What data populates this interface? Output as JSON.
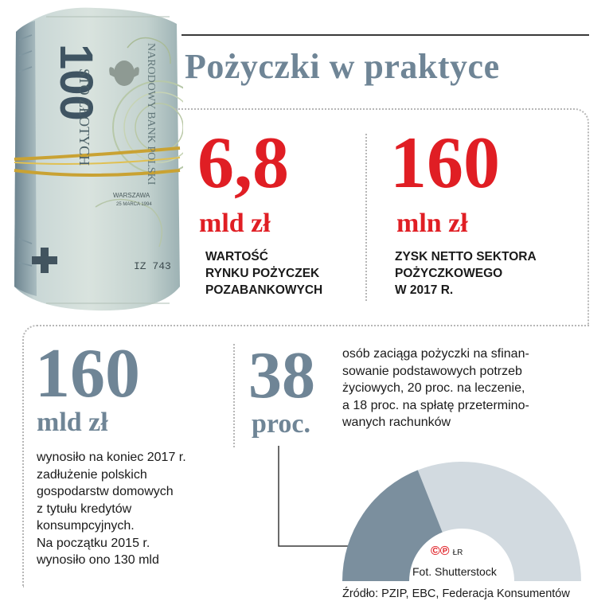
{
  "title": "Pożyczki w praktyce",
  "stats_top": [
    {
      "value": "6,8",
      "unit": "mld zł",
      "lines": [
        "WARTOŚĆ",
        "RYNKU POŻYCZEK",
        "POZABANKOWYCH"
      ]
    },
    {
      "value": "160",
      "unit": "mln zł",
      "lines": [
        "ZYSK NETTO SEKTORA",
        "POŻYCZKOWEGO",
        "W 2017 R."
      ]
    }
  ],
  "stat_left": {
    "value": "160",
    "unit": "mld zł",
    "lines": [
      "wynosiło na koniec 2017 r.",
      "zadłużenie polskich",
      "gospodarstw domowych",
      "z tytułu kredytów",
      "konsumpcyjnych.",
      "Na początku 2015 r.",
      "wynosiło ono 130 mld"
    ]
  },
  "stat_right": {
    "value": "38",
    "unit": "proc.",
    "lines": [
      "osób zaciąga pożyczki na sfinan-",
      "sowanie podstawowych potrzeb",
      "życiowych, 20 proc. na leczenie,",
      "a 18 proc. na spłatę przetermino-",
      "wanych rachunków"
    ],
    "gauge_fraction": 0.38
  },
  "banknote": {
    "denomination": "100",
    "words": "STO ZŁOTYCH",
    "bank": "NARODOWY BANK POLSKI",
    "city": "WARSZAWA",
    "date": "25 MARCA 1994",
    "serial": "IZ 743"
  },
  "credit_symbols": "©℗",
  "credit_mark": "ŁR",
  "credit": "Fot. Shutterstock",
  "source": "Źródło: PZIP, EBC, Federacja Konsumentów",
  "colors": {
    "accent_red": "#e01e24",
    "accent_gray": "#6f8596",
    "gauge_dark": "#7b8f9e",
    "gauge_light": "#d2dae0"
  }
}
